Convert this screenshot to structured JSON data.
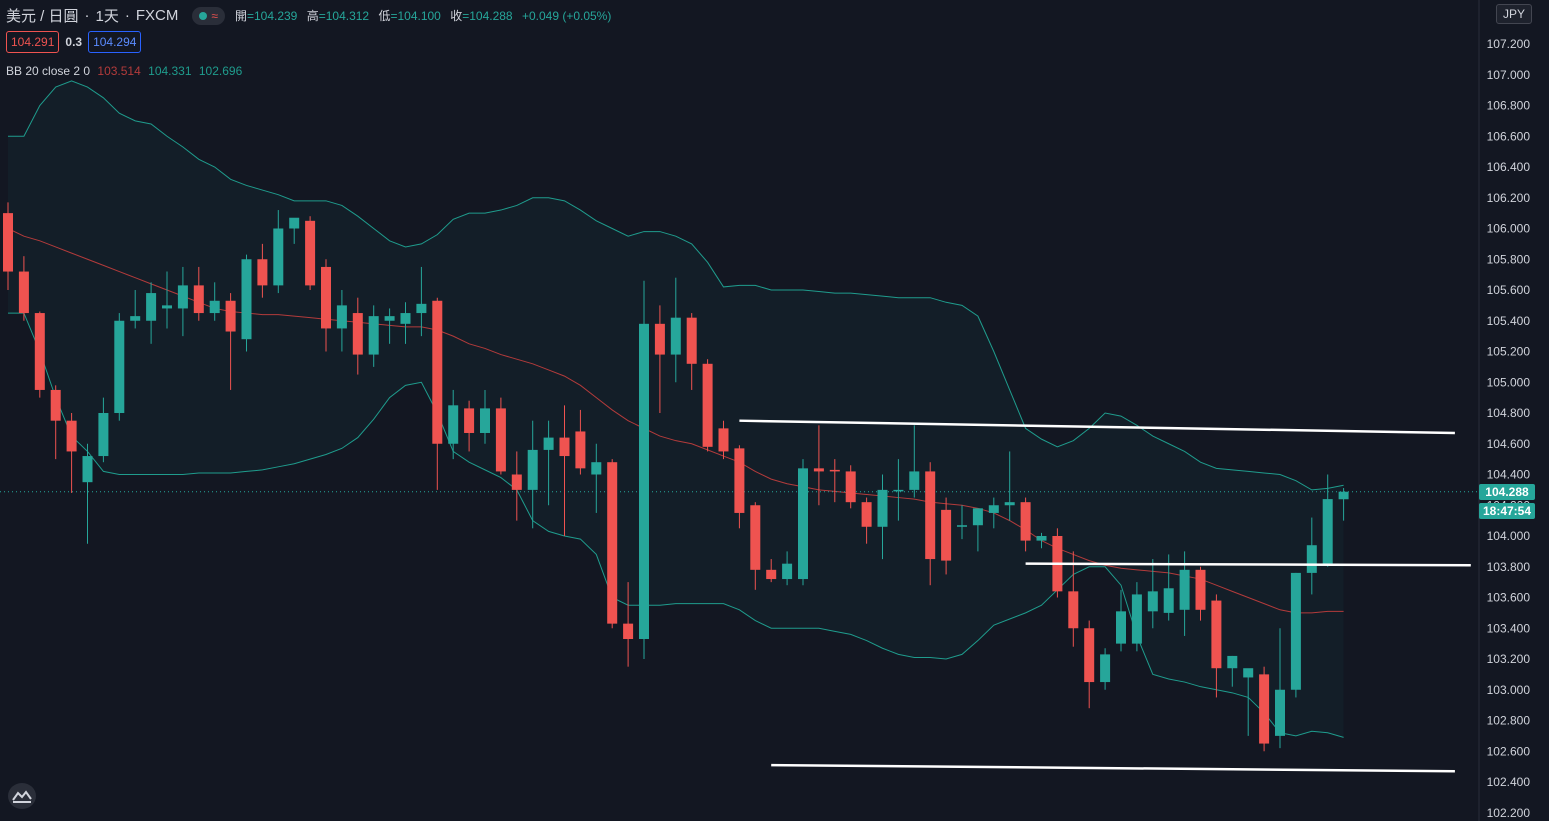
{
  "header": {
    "symbol": "美元 / 日圓",
    "separator": "·",
    "interval": "1天",
    "source": "FXCM",
    "status_icon": "green-dot-icon",
    "wave_icon": "≈",
    "ohlc": [
      {
        "label": "開",
        "value": "=104.239"
      },
      {
        "label": "高",
        "value": "=104.312"
      },
      {
        "label": "低",
        "value": "=104.100"
      },
      {
        "label": "收",
        "value": "=104.288"
      }
    ],
    "change": "+0.049 (+0.05%)"
  },
  "trade": {
    "sell": "104.291",
    "spread": "0.3",
    "buy": "104.294"
  },
  "indicator": {
    "name": "BB 20 close 2 0",
    "middle": "103.514",
    "upper": "104.331",
    "lower": "102.696"
  },
  "axis": {
    "currency": "JPY"
  },
  "last_price": {
    "price": "104.288",
    "countdown": "18:47:54"
  },
  "colors": {
    "up": "#26a69a",
    "down": "#ef5350",
    "basis": "#b33b3b",
    "bands": "#1f9c8d",
    "background": "#131722"
  },
  "chart_data": {
    "type": "candlestick",
    "xlabel": "",
    "ylabel": "",
    "ylim": [
      102.2,
      107.35
    ],
    "y_ticks": [
      107.2,
      107.0,
      106.8,
      106.6,
      106.4,
      106.2,
      106.0,
      105.8,
      105.6,
      105.4,
      105.2,
      105.0,
      104.8,
      104.6,
      104.4,
      104.2,
      104.0,
      103.8,
      103.6,
      103.4,
      103.2,
      103.0,
      102.8,
      102.6,
      102.4,
      102.2
    ],
    "y_tick_labels": [
      "107.200",
      "107.000",
      "106.800",
      "106.600",
      "106.400",
      "106.200",
      "106.000",
      "105.800",
      "105.600",
      "105.400",
      "105.200",
      "105.000",
      "104.800",
      "104.600",
      "104.400",
      "104.200",
      "104.000",
      "103.800",
      "103.600",
      "103.400",
      "103.200",
      "103.000",
      "102.800",
      "102.600",
      "102.400",
      "102.200"
    ],
    "candles": [
      {
        "o": 106.1,
        "h": 106.17,
        "l": 105.6,
        "c": 105.72
      },
      {
        "o": 105.72,
        "h": 105.82,
        "l": 105.4,
        "c": 105.45
      },
      {
        "o": 105.45,
        "h": 105.46,
        "l": 104.9,
        "c": 104.95
      },
      {
        "o": 104.95,
        "h": 104.98,
        "l": 104.5,
        "c": 104.75
      },
      {
        "o": 104.75,
        "h": 104.8,
        "l": 104.28,
        "c": 104.55
      },
      {
        "o": 104.35,
        "h": 104.6,
        "l": 103.95,
        "c": 104.52
      },
      {
        "o": 104.52,
        "h": 104.9,
        "l": 104.48,
        "c": 104.8
      },
      {
        "o": 104.8,
        "h": 105.45,
        "l": 104.75,
        "c": 105.4
      },
      {
        "o": 105.4,
        "h": 105.6,
        "l": 105.35,
        "c": 105.43
      },
      {
        "o": 105.4,
        "h": 105.65,
        "l": 105.25,
        "c": 105.58
      },
      {
        "o": 105.48,
        "h": 105.72,
        "l": 105.35,
        "c": 105.5
      },
      {
        "o": 105.48,
        "h": 105.75,
        "l": 105.3,
        "c": 105.63
      },
      {
        "o": 105.63,
        "h": 105.75,
        "l": 105.4,
        "c": 105.45
      },
      {
        "o": 105.45,
        "h": 105.65,
        "l": 105.4,
        "c": 105.53
      },
      {
        "o": 105.53,
        "h": 105.58,
        "l": 104.95,
        "c": 105.33
      },
      {
        "o": 105.28,
        "h": 105.83,
        "l": 105.2,
        "c": 105.8
      },
      {
        "o": 105.8,
        "h": 105.9,
        "l": 105.55,
        "c": 105.63
      },
      {
        "o": 105.63,
        "h": 106.12,
        "l": 105.58,
        "c": 106.0
      },
      {
        "o": 106.0,
        "h": 106.05,
        "l": 105.9,
        "c": 106.07
      },
      {
        "o": 106.05,
        "h": 106.08,
        "l": 105.6,
        "c": 105.63
      },
      {
        "o": 105.75,
        "h": 105.8,
        "l": 105.2,
        "c": 105.35
      },
      {
        "o": 105.35,
        "h": 105.6,
        "l": 105.2,
        "c": 105.5
      },
      {
        "o": 105.45,
        "h": 105.55,
        "l": 105.05,
        "c": 105.18
      },
      {
        "o": 105.18,
        "h": 105.5,
        "l": 105.1,
        "c": 105.43
      },
      {
        "o": 105.4,
        "h": 105.48,
        "l": 105.25,
        "c": 105.43
      },
      {
        "o": 105.38,
        "h": 105.52,
        "l": 105.25,
        "c": 105.45
      },
      {
        "o": 105.45,
        "h": 105.75,
        "l": 105.3,
        "c": 105.51
      },
      {
        "o": 105.53,
        "h": 105.55,
        "l": 104.3,
        "c": 104.6
      },
      {
        "o": 104.6,
        "h": 104.95,
        "l": 104.5,
        "c": 104.85
      },
      {
        "o": 104.83,
        "h": 104.88,
        "l": 104.55,
        "c": 104.67
      },
      {
        "o": 104.67,
        "h": 104.95,
        "l": 104.6,
        "c": 104.83
      },
      {
        "o": 104.83,
        "h": 104.9,
        "l": 104.4,
        "c": 104.42
      },
      {
        "o": 104.4,
        "h": 104.55,
        "l": 104.1,
        "c": 104.3
      },
      {
        "o": 104.3,
        "h": 104.75,
        "l": 104.05,
        "c": 104.56
      },
      {
        "o": 104.56,
        "h": 104.75,
        "l": 104.2,
        "c": 104.64
      },
      {
        "o": 104.64,
        "h": 104.85,
        "l": 104.0,
        "c": 104.52
      },
      {
        "o": 104.68,
        "h": 104.82,
        "l": 104.4,
        "c": 104.44
      },
      {
        "o": 104.4,
        "h": 104.6,
        "l": 104.15,
        "c": 104.48
      },
      {
        "o": 104.48,
        "h": 104.5,
        "l": 103.4,
        "c": 103.43
      },
      {
        "o": 103.43,
        "h": 103.7,
        "l": 103.15,
        "c": 103.33
      },
      {
        "o": 103.33,
        "h": 105.66,
        "l": 103.2,
        "c": 105.38
      },
      {
        "o": 105.38,
        "h": 105.5,
        "l": 104.8,
        "c": 105.18
      },
      {
        "o": 105.18,
        "h": 105.68,
        "l": 105.0,
        "c": 105.42
      },
      {
        "o": 105.42,
        "h": 105.45,
        "l": 104.95,
        "c": 105.12
      },
      {
        "o": 105.12,
        "h": 105.15,
        "l": 104.55,
        "c": 104.58
      },
      {
        "o": 104.7,
        "h": 104.75,
        "l": 104.5,
        "c": 104.55
      },
      {
        "o": 104.57,
        "h": 104.59,
        "l": 104.05,
        "c": 104.15
      },
      {
        "o": 104.2,
        "h": 104.22,
        "l": 103.65,
        "c": 103.78
      },
      {
        "o": 103.78,
        "h": 103.85,
        "l": 103.7,
        "c": 103.72
      },
      {
        "o": 103.72,
        "h": 103.9,
        "l": 103.68,
        "c": 103.82
      },
      {
        "o": 103.72,
        "h": 104.5,
        "l": 103.68,
        "c": 104.44
      },
      {
        "o": 104.44,
        "h": 104.72,
        "l": 104.2,
        "c": 104.42
      },
      {
        "o": 104.43,
        "h": 104.5,
        "l": 104.22,
        "c": 104.42
      },
      {
        "o": 104.42,
        "h": 104.46,
        "l": 104.18,
        "c": 104.22
      },
      {
        "o": 104.22,
        "h": 104.25,
        "l": 103.95,
        "c": 104.06
      },
      {
        "o": 104.06,
        "h": 104.4,
        "l": 103.85,
        "c": 104.3
      },
      {
        "o": 104.3,
        "h": 104.5,
        "l": 104.1,
        "c": 104.3
      },
      {
        "o": 104.3,
        "h": 104.72,
        "l": 104.25,
        "c": 104.42
      },
      {
        "o": 104.42,
        "h": 104.48,
        "l": 103.68,
        "c": 103.85
      },
      {
        "o": 104.17,
        "h": 104.25,
        "l": 103.75,
        "c": 103.84
      },
      {
        "o": 104.06,
        "h": 104.2,
        "l": 103.98,
        "c": 104.07
      },
      {
        "o": 104.07,
        "h": 104.15,
        "l": 103.9,
        "c": 104.18
      },
      {
        "o": 104.15,
        "h": 104.25,
        "l": 104.05,
        "c": 104.2
      },
      {
        "o": 104.2,
        "h": 104.55,
        "l": 104.1,
        "c": 104.22
      },
      {
        "o": 104.22,
        "h": 104.25,
        "l": 103.9,
        "c": 103.97
      },
      {
        "o": 103.97,
        "h": 104.02,
        "l": 103.92,
        "c": 104.0
      },
      {
        "o": 104.0,
        "h": 104.05,
        "l": 103.6,
        "c": 103.64
      },
      {
        "o": 103.64,
        "h": 103.9,
        "l": 103.28,
        "c": 103.4
      },
      {
        "o": 103.4,
        "h": 103.45,
        "l": 102.88,
        "c": 103.05
      },
      {
        "o": 103.05,
        "h": 103.27,
        "l": 103.0,
        "c": 103.23
      },
      {
        "o": 103.3,
        "h": 103.65,
        "l": 103.25,
        "c": 103.51
      },
      {
        "o": 103.3,
        "h": 103.7,
        "l": 103.25,
        "c": 103.62
      },
      {
        "o": 103.51,
        "h": 103.85,
        "l": 103.4,
        "c": 103.64
      },
      {
        "o": 103.5,
        "h": 103.88,
        "l": 103.45,
        "c": 103.66
      },
      {
        "o": 103.52,
        "h": 103.9,
        "l": 103.35,
        "c": 103.78
      },
      {
        "o": 103.78,
        "h": 103.8,
        "l": 103.45,
        "c": 103.52
      },
      {
        "o": 103.58,
        "h": 103.62,
        "l": 102.95,
        "c": 103.14
      },
      {
        "o": 103.14,
        "h": 103.22,
        "l": 103.02,
        "c": 103.22
      },
      {
        "o": 103.08,
        "h": 103.12,
        "l": 102.7,
        "c": 103.14
      },
      {
        "o": 103.1,
        "h": 103.15,
        "l": 102.6,
        "c": 102.65
      },
      {
        "o": 102.7,
        "h": 103.4,
        "l": 102.62,
        "c": 103.0
      },
      {
        "o": 103.0,
        "h": 103.76,
        "l": 102.95,
        "c": 103.76
      },
      {
        "o": 103.76,
        "h": 104.12,
        "l": 103.62,
        "c": 103.94
      },
      {
        "o": 103.82,
        "h": 104.4,
        "l": 103.8,
        "c": 104.24
      },
      {
        "o": 104.239,
        "h": 104.312,
        "l": 104.1,
        "c": 104.288
      }
    ],
    "bb_upper": [
      106.6,
      106.6,
      106.8,
      106.92,
      106.96,
      106.92,
      106.85,
      106.75,
      106.7,
      106.68,
      106.6,
      106.53,
      106.45,
      106.4,
      106.32,
      106.28,
      106.25,
      106.22,
      106.18,
      106.18,
      106.18,
      106.15,
      106.08,
      106.0,
      105.92,
      105.88,
      105.9,
      105.96,
      106.06,
      106.1,
      106.1,
      106.12,
      106.15,
      106.2,
      106.2,
      106.18,
      106.12,
      106.05,
      106.0,
      105.95,
      105.98,
      105.98,
      105.95,
      105.9,
      105.78,
      105.62,
      105.63,
      105.63,
      105.6,
      105.6,
      105.6,
      105.59,
      105.58,
      105.58,
      105.57,
      105.56,
      105.55,
      105.55,
      105.55,
      105.52,
      105.5,
      105.43,
      105.2,
      104.95,
      104.7,
      104.63,
      104.58,
      104.62,
      104.7,
      104.8,
      104.78,
      104.72,
      104.65,
      104.6,
      104.55,
      104.48,
      104.44,
      104.43,
      104.42,
      104.41,
      104.4,
      104.36,
      104.3,
      104.31,
      104.33
    ],
    "bb_basis": [
      106.0,
      105.95,
      105.92,
      105.88,
      105.84,
      105.8,
      105.76,
      105.72,
      105.68,
      105.64,
      105.6,
      105.56,
      105.52,
      105.48,
      105.46,
      105.45,
      105.44,
      105.44,
      105.43,
      105.42,
      105.41,
      105.4,
      105.39,
      105.38,
      105.37,
      105.36,
      105.36,
      105.34,
      105.3,
      105.25,
      105.22,
      105.18,
      105.15,
      105.12,
      105.08,
      105.04,
      104.98,
      104.9,
      104.82,
      104.75,
      104.7,
      104.65,
      104.62,
      104.6,
      104.56,
      104.52,
      104.48,
      104.42,
      104.37,
      104.34,
      104.32,
      104.3,
      104.29,
      104.28,
      104.27,
      104.26,
      104.25,
      104.24,
      104.22,
      104.21,
      104.2,
      104.18,
      104.15,
      104.1,
      104.04,
      103.97,
      103.92,
      103.88,
      103.84,
      103.81,
      103.79,
      103.78,
      103.77,
      103.76,
      103.74,
      103.72,
      103.68,
      103.64,
      103.6,
      103.56,
      103.52,
      103.5,
      103.5,
      103.51,
      103.51
    ],
    "bb_lower": [
      105.45,
      105.45,
      105.2,
      104.9,
      104.65,
      104.55,
      104.42,
      104.4,
      104.4,
      104.4,
      104.4,
      104.4,
      104.41,
      104.41,
      104.41,
      104.42,
      104.43,
      104.45,
      104.47,
      104.5,
      104.53,
      104.57,
      104.64,
      104.76,
      104.9,
      104.98,
      105.0,
      104.8,
      104.55,
      104.48,
      104.43,
      104.38,
      104.3,
      104.1,
      104.03,
      104.0,
      103.98,
      103.88,
      103.6,
      103.55,
      103.55,
      103.55,
      103.56,
      103.56,
      103.56,
      103.56,
      103.52,
      103.45,
      103.4,
      103.4,
      103.4,
      103.4,
      103.38,
      103.36,
      103.32,
      103.27,
      103.23,
      103.21,
      103.21,
      103.2,
      103.23,
      103.32,
      103.42,
      103.46,
      103.5,
      103.55,
      103.65,
      103.75,
      103.8,
      103.8,
      103.68,
      103.35,
      103.1,
      103.07,
      103.05,
      103.02,
      103.0,
      102.98,
      102.95,
      102.85,
      102.72,
      102.7,
      102.73,
      102.72,
      102.69
    ],
    "trend_lines": [
      {
        "from": [
          46,
          104.75
        ],
        "to": [
          91,
          104.67
        ]
      },
      {
        "from": [
          64,
          103.82
        ],
        "to": [
          92,
          103.81
        ]
      },
      {
        "from": [
          48,
          102.51
        ],
        "to": [
          91,
          102.47
        ]
      }
    ],
    "last_price": 104.288
  }
}
